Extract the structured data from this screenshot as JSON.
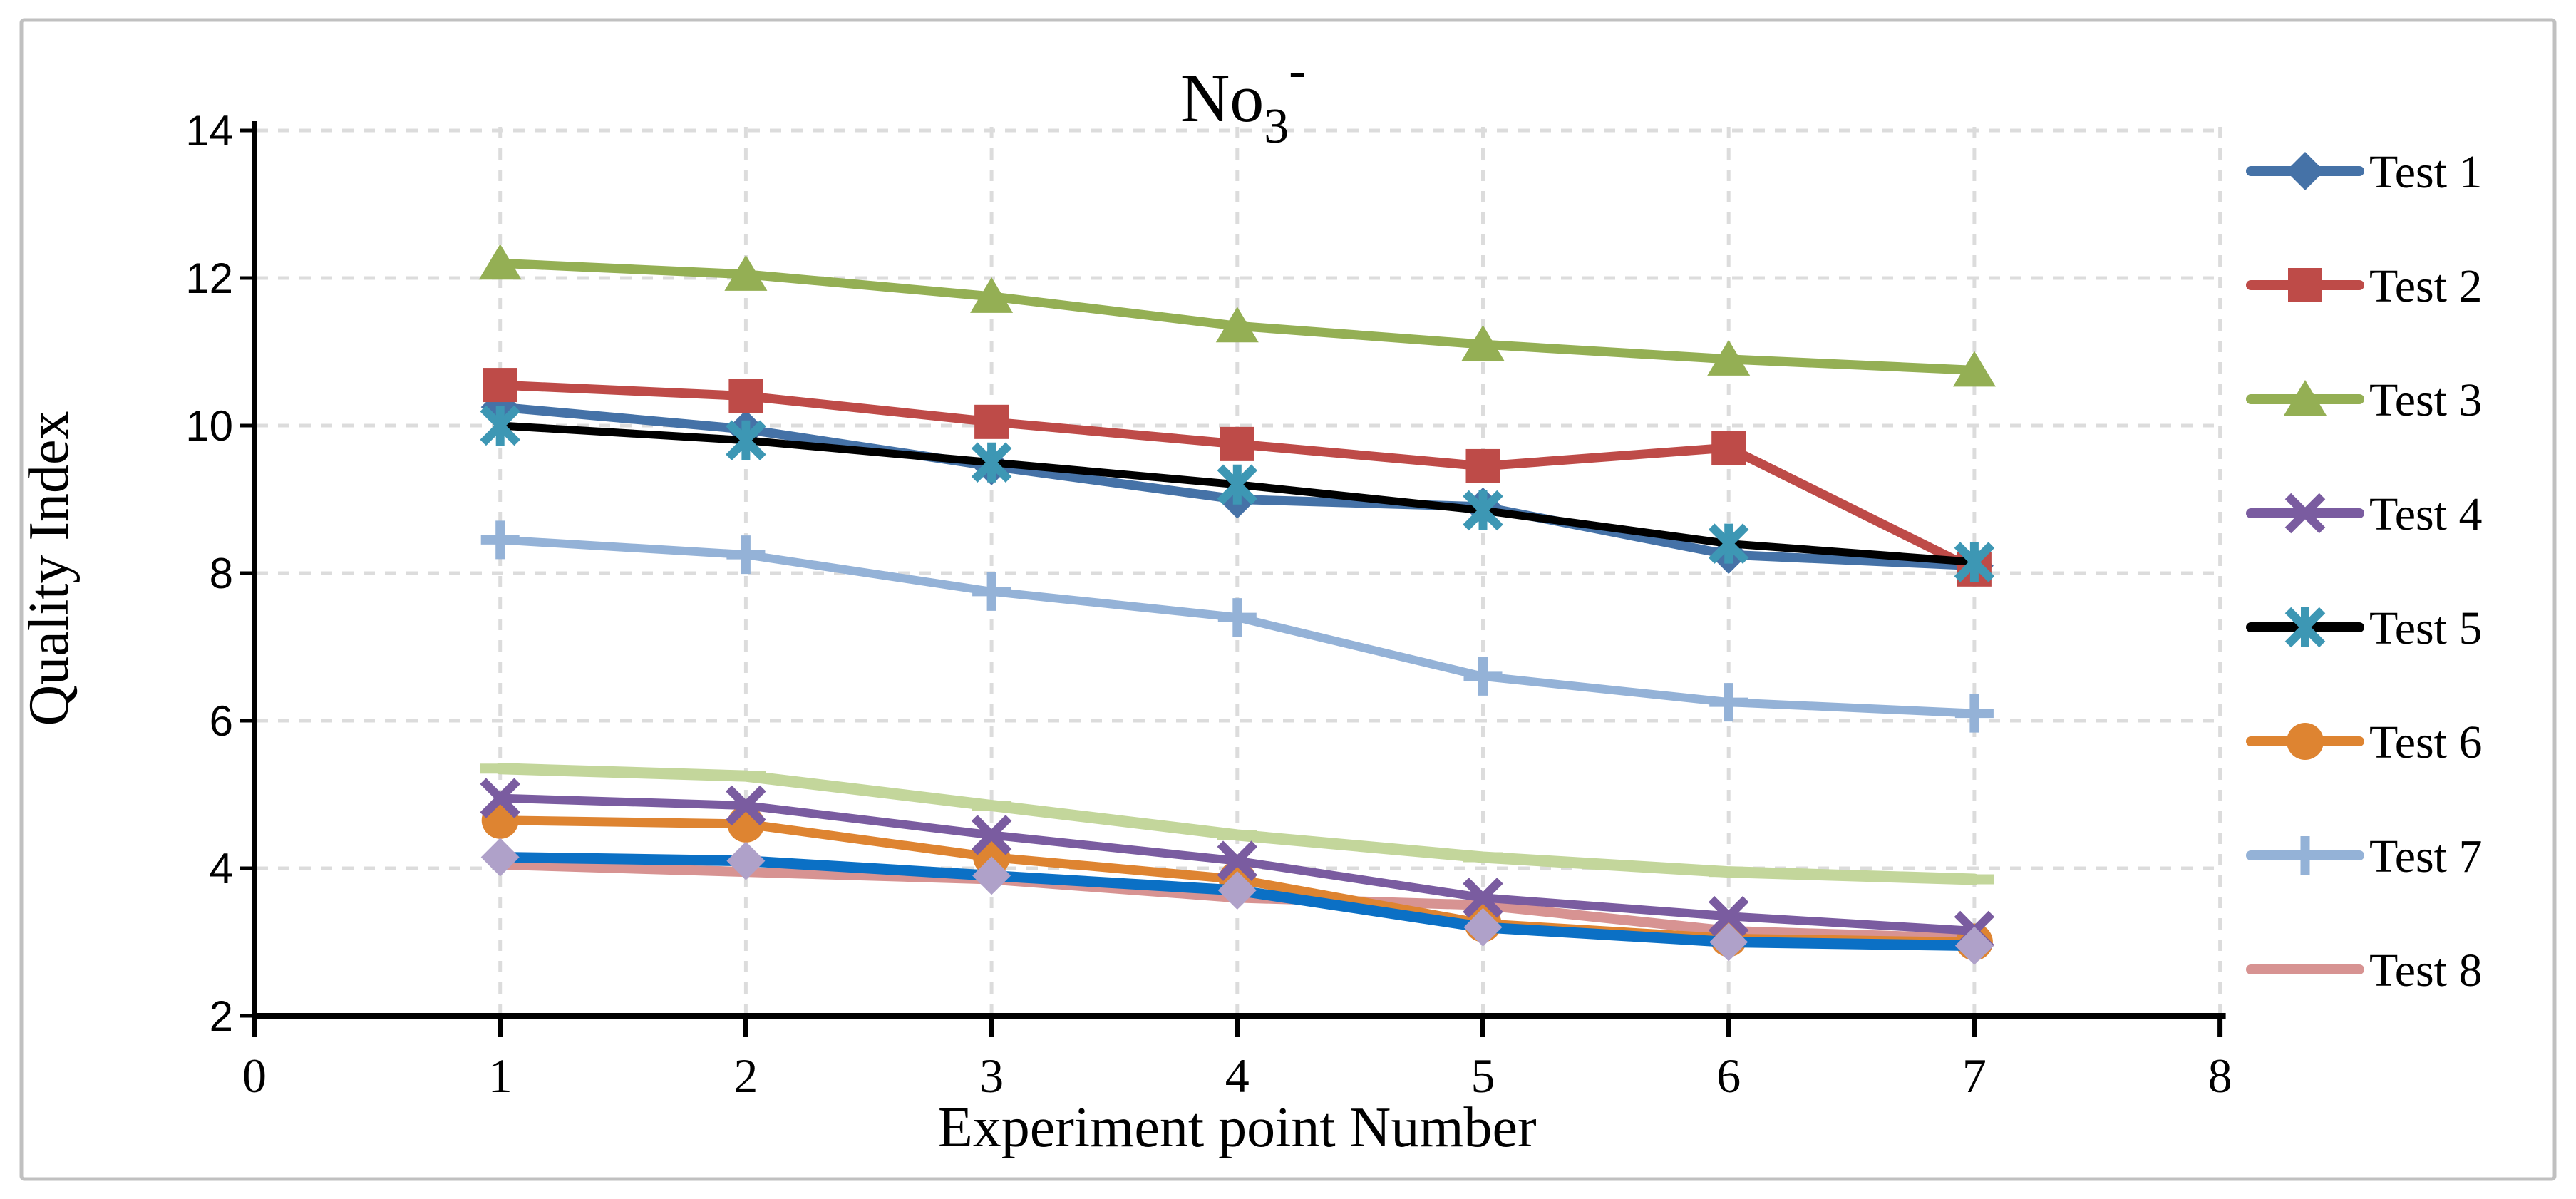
{
  "chart_data": {
    "type": "line",
    "title": {
      "base": "No",
      "sub": "3",
      "sup": "-"
    },
    "xlabel": "Experiment point Number",
    "ylabel": "Quality Index",
    "x": [
      1,
      2,
      3,
      4,
      5,
      6,
      7
    ],
    "xlim": [
      0,
      8
    ],
    "ylim": [
      2,
      14
    ],
    "x_tick_labels": [
      "0",
      "1",
      "2",
      "3",
      "4",
      "5",
      "6",
      "7",
      "8"
    ],
    "y_tick_values": [
      14,
      12,
      10,
      8,
      6,
      4,
      2
    ],
    "y_tick_labels": [
      "14",
      "12",
      "10",
      "8",
      "6",
      "4",
      "2"
    ],
    "grid": "both-dashed",
    "legend_position": "right",
    "colors": {
      "axis": "#000000",
      "gridline": "#dcdcdc",
      "frame_border": "#c0c0c0",
      "background": "#ffffff"
    },
    "series": [
      {
        "name": "Test 1",
        "in_legend": true,
        "color": "#4572A7",
        "marker": "diamond",
        "marker_color": "#4572A7",
        "line_width": 13,
        "values": [
          10.25,
          9.95,
          9.45,
          9.0,
          8.9,
          8.25,
          8.1
        ]
      },
      {
        "name": "Test 2",
        "in_legend": true,
        "color": "#BE4B48",
        "marker": "square",
        "marker_color": "#BE4B48",
        "line_width": 13,
        "values": [
          10.55,
          10.4,
          10.05,
          9.75,
          9.45,
          9.7,
          8.05
        ]
      },
      {
        "name": "Test 3",
        "in_legend": true,
        "color": "#94AF54",
        "marker": "triangle",
        "marker_color": "#94AF54",
        "line_width": 13,
        "values": [
          12.2,
          12.05,
          11.75,
          11.35,
          11.1,
          10.9,
          10.75
        ]
      },
      {
        "name": "Test 4",
        "in_legend": true,
        "color": "#7A5CA0",
        "marker": "x",
        "marker_color": "#7A5CA0",
        "line_width": 12,
        "values": [
          4.95,
          4.85,
          4.45,
          4.1,
          3.6,
          3.35,
          3.15
        ]
      },
      {
        "name": "Test 5",
        "in_legend": true,
        "color": "#000000",
        "marker": "asterisk",
        "marker_color": "#3D97B4",
        "line_width": 11,
        "values": [
          10.0,
          9.8,
          9.5,
          9.2,
          8.85,
          8.4,
          8.15
        ]
      },
      {
        "name": "Test 6",
        "in_legend": true,
        "color": "#DE8431",
        "marker": "circle",
        "marker_color": "#DE8431",
        "line_width": 13,
        "values": [
          4.65,
          4.6,
          4.15,
          3.85,
          3.25,
          3.05,
          3.0
        ]
      },
      {
        "name": "Test 7",
        "in_legend": true,
        "color": "#94B2D7",
        "marker": "plus",
        "marker_color": "#94B2D7",
        "line_width": 12,
        "values": [
          8.45,
          8.25,
          7.75,
          7.4,
          6.6,
          6.25,
          6.1
        ]
      },
      {
        "name": "Test 8",
        "in_legend": true,
        "color": "#D79392",
        "marker": "none",
        "marker_color": "#D79392",
        "line_width": 14,
        "values": [
          4.05,
          3.95,
          3.85,
          3.6,
          3.5,
          3.15,
          3.05
        ]
      },
      {
        "name": "",
        "in_legend": false,
        "color": "#0B70C5",
        "marker": "diamond",
        "marker_color": "#AFA1C9",
        "line_width": 15,
        "values": [
          4.15,
          4.1,
          3.9,
          3.7,
          3.2,
          3.0,
          2.95
        ]
      },
      {
        "name": "",
        "in_legend": false,
        "color": "#C3D69B",
        "marker": "dash",
        "marker_color": "#C3D69B",
        "line_width": 16,
        "values": [
          5.35,
          5.25,
          4.85,
          4.45,
          4.15,
          3.95,
          3.85
        ]
      }
    ],
    "legend_entries": [
      "Test 1",
      "Test 2",
      "Test 3",
      "Test 4",
      "Test 5",
      "Test 6",
      "Test 7",
      "Test 8"
    ]
  }
}
